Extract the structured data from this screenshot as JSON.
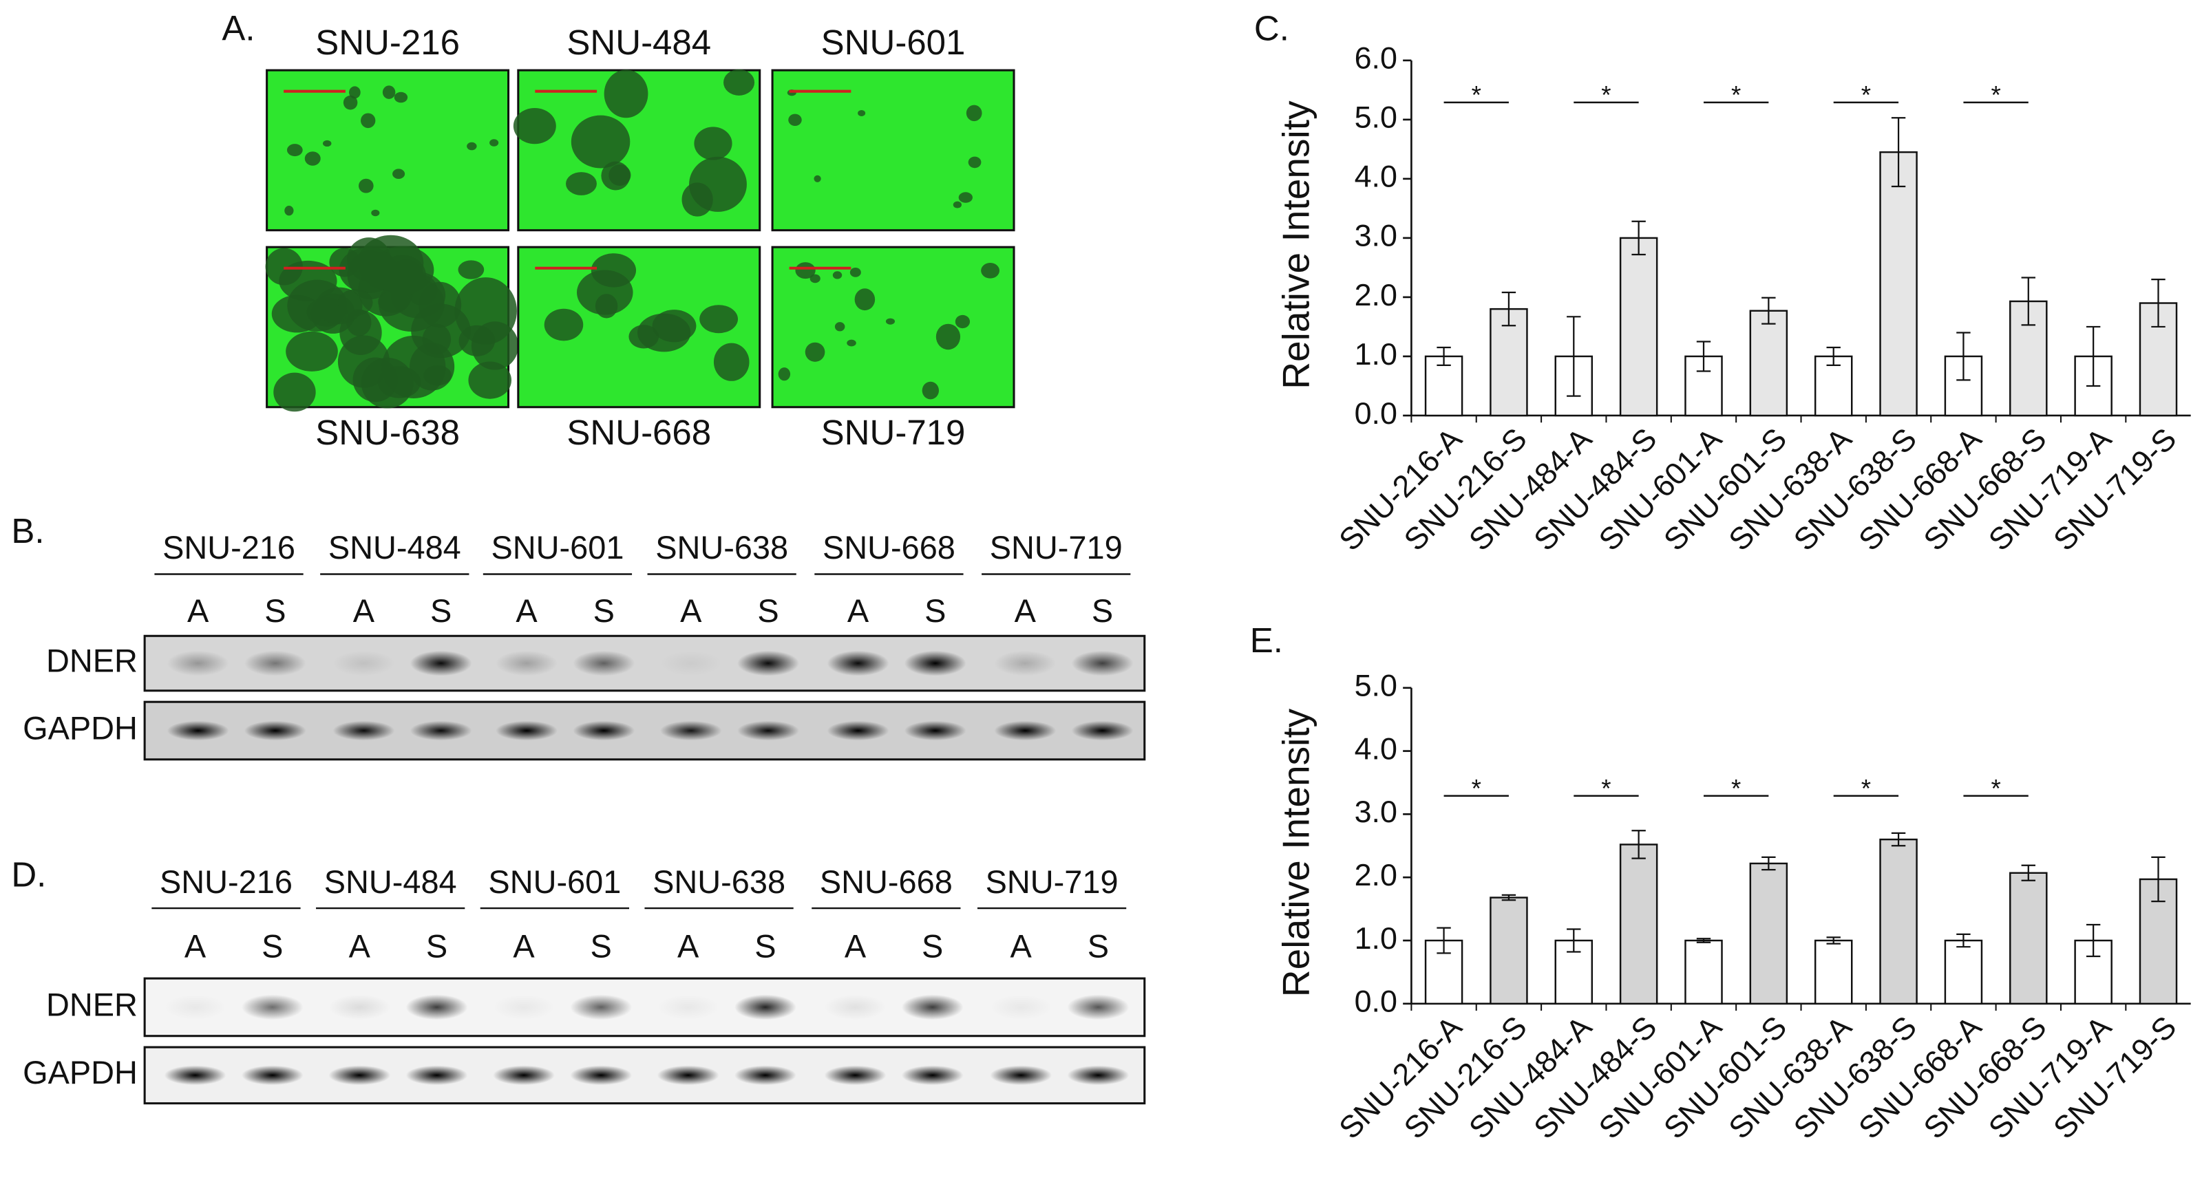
{
  "panel_a": {
    "label": "A.",
    "images": [
      "SNU-216",
      "SNU-484",
      "SNU-601",
      "SNU-638",
      "SNU-668",
      "SNU-719"
    ]
  },
  "panel_b": {
    "label": "B.",
    "cell_lines": [
      "SNU-216",
      "SNU-484",
      "SNU-601",
      "SNU-638",
      "SNU-668",
      "SNU-719"
    ],
    "lanes": [
      "A",
      "S"
    ],
    "rows": [
      "DNER",
      "GAPDH"
    ]
  },
  "panel_d": {
    "label": "D.",
    "cell_lines": [
      "SNU-216",
      "SNU-484",
      "SNU-601",
      "SNU-638",
      "SNU-668",
      "SNU-719"
    ],
    "lanes": [
      "A",
      "S"
    ],
    "rows": [
      "DNER",
      "GAPDH"
    ]
  },
  "chart_data": [
    {
      "type": "bar",
      "panel_label": "C.",
      "y_label": "Relative Intensity",
      "categories": [
        "SNU-216-A",
        "SNU-216-S",
        "SNU-484-A",
        "SNU-484-S",
        "SNU-601-A",
        "SNU-601-S",
        "SNU-638-A",
        "SNU-638-S",
        "SNU-668-A",
        "SNU-668-S",
        "SNU-719-A",
        "SNU-719-S"
      ],
      "values": [
        1.0,
        1.8,
        1.0,
        3.0,
        1.0,
        1.77,
        1.0,
        4.45,
        1.0,
        1.93,
        1.0,
        1.9
      ],
      "errors": [
        0.15,
        0.28,
        0.67,
        0.28,
        0.25,
        0.22,
        0.15,
        0.58,
        0.4,
        0.4,
        0.5,
        0.4
      ],
      "colors": [
        "#ffffff",
        "#e6e6e6",
        "#ffffff",
        "#e6e6e6",
        "#ffffff",
        "#e6e6e6",
        "#ffffff",
        "#e6e6e6",
        "#ffffff",
        "#e6e6e6",
        "#ffffff",
        "#e6e6e6"
      ],
      "significance": [
        "*",
        "*",
        "*",
        "*",
        "*",
        null
      ],
      "ylim": [
        0,
        6
      ],
      "yticks": [
        {
          "value": 0,
          "label": "0.0"
        },
        {
          "value": 1,
          "label": "1.0"
        },
        {
          "value": 2,
          "label": "2.0"
        },
        {
          "value": 3,
          "label": "3.0"
        },
        {
          "value": 4,
          "label": "4.0"
        },
        {
          "value": 5,
          "label": "5.0"
        },
        {
          "value": 6,
          "label": "6.0"
        }
      ]
    },
    {
      "type": "bar",
      "panel_label": "E.",
      "y_label": "Relative Intensity",
      "categories": [
        "SNU-216-A",
        "SNU-216-S",
        "SNU-484-A",
        "SNU-484-S",
        "SNU-601-A",
        "SNU-601-S",
        "SNU-638-A",
        "SNU-638-S",
        "SNU-668-A",
        "SNU-668-S",
        "SNU-719-A",
        "SNU-719-S"
      ],
      "values": [
        1.0,
        1.68,
        1.0,
        2.52,
        1.0,
        2.22,
        1.0,
        2.6,
        1.0,
        2.07,
        1.0,
        1.97
      ],
      "errors": [
        0.2,
        0.04,
        0.18,
        0.22,
        0.03,
        0.1,
        0.05,
        0.1,
        0.1,
        0.12,
        0.25,
        0.35
      ],
      "colors": [
        "#ffffff",
        "#d4d4d4",
        "#ffffff",
        "#d4d4d4",
        "#ffffff",
        "#d4d4d4",
        "#ffffff",
        "#d4d4d4",
        "#ffffff",
        "#d4d4d4",
        "#ffffff",
        "#d4d4d4"
      ],
      "significance": [
        "*",
        "*",
        "*",
        "*",
        "*",
        null
      ],
      "ylim": [
        0,
        5
      ],
      "yticks": [
        {
          "value": 0,
          "label": "0.0"
        },
        {
          "value": 1,
          "label": "1.0"
        },
        {
          "value": 2,
          "label": "2.0"
        },
        {
          "value": 3,
          "label": "3.0"
        },
        {
          "value": 4,
          "label": "4.0"
        },
        {
          "value": 5,
          "label": "5.0"
        }
      ]
    }
  ]
}
